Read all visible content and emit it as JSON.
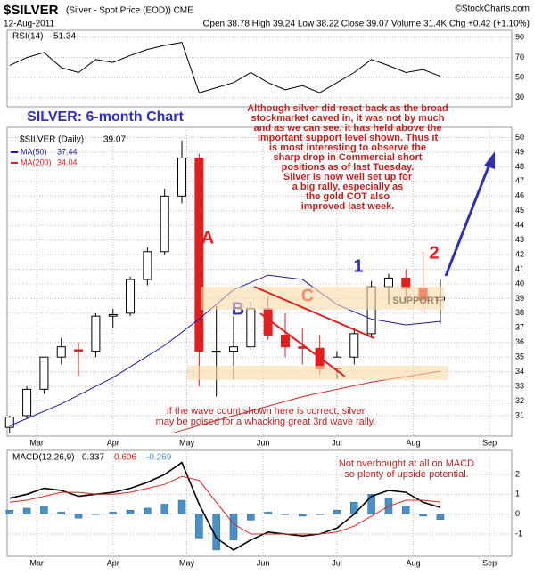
{
  "header": {
    "title": "$SILVER",
    "subtitle": "(Silver - Spot Price (EOD)) CME",
    "date": "12-Aug-2011",
    "quote": "Open 38.78  High 39.24  Low 38.22  Close 39.07  Volume 31.4K  Chg +0.42 (+1.10%)",
    "credit": "©StockCharts.com"
  },
  "chart_data": [
    {
      "type": "line",
      "series": [
        {
          "name": "RSI(14)",
          "color": "#000000",
          "x": [
            49,
            56,
            63,
            70,
            77,
            84,
            91,
            98,
            105,
            112,
            119,
            126,
            133,
            140,
            147,
            154,
            161,
            168,
            175,
            182,
            189,
            196,
            203,
            210,
            217,
            224
          ],
          "values": [
            62,
            70,
            75,
            60,
            55,
            68,
            65,
            72,
            78,
            82,
            85,
            35,
            40,
            45,
            55,
            45,
            38,
            42,
            35,
            45,
            55,
            68,
            62,
            55,
            58,
            51.34
          ]
        }
      ],
      "xlim": [
        48,
        253
      ],
      "ylim": [
        21,
        97
      ],
      "yticks": [
        30,
        50,
        70,
        90
      ],
      "grid": true
    },
    {
      "type": "candlestick",
      "title": "SILVER: 6-month Chart",
      "name": "$SILVER (Daily)",
      "x": [
        49,
        56,
        63,
        70,
        77,
        84,
        91,
        98,
        105,
        112,
        119,
        126,
        133,
        140,
        147,
        154,
        161,
        168,
        175,
        182,
        189,
        196,
        203,
        210,
        217,
        224
      ],
      "open": [
        30.2,
        31.0,
        32.8,
        35.0,
        35.5,
        35.4,
        37.8,
        38.0,
        40.3,
        42.2,
        46.0,
        48.6,
        35.4,
        35.4,
        35.7,
        38.3,
        36.5,
        35.7,
        35.6,
        34.2,
        35.0,
        36.6,
        39.8,
        40.4,
        39.7,
        38.9
      ],
      "high": [
        31.0,
        33.0,
        35.0,
        36.3,
        36.0,
        38.0,
        38.3,
        40.5,
        42.5,
        46.5,
        49.8,
        48.9,
        38.5,
        37.8,
        38.8,
        39.2,
        38.0,
        37.0,
        36.5,
        35.4,
        37.0,
        40.2,
        40.7,
        41.0,
        42.2,
        40.3
      ],
      "low": [
        29.8,
        30.8,
        32.5,
        34.5,
        33.7,
        35.0,
        37.0,
        37.8,
        39.9,
        42.0,
        45.5,
        33.0,
        32.3,
        33.5,
        35.5,
        36.2,
        35.0,
        34.5,
        33.8,
        33.5,
        34.5,
        36.3,
        38.6,
        38.7,
        38.0,
        37.3
      ],
      "close": [
        30.9,
        32.8,
        35.0,
        35.7,
        35.4,
        37.8,
        37.9,
        40.3,
        42.2,
        46.0,
        48.6,
        35.4,
        35.4,
        35.7,
        38.3,
        36.5,
        35.7,
        35.6,
        34.2,
        35.0,
        36.6,
        39.8,
        40.4,
        39.7,
        38.9,
        39.07
      ],
      "up_color": "#ffffff",
      "down_color": "#e02020",
      "series": [
        {
          "name": "MA(50)",
          "color": "#1a1aa0",
          "x": [
            49,
            70,
            91,
            112,
            126,
            140,
            154,
            168,
            182,
            196,
            210,
            224
          ],
          "values": [
            30.3,
            31.8,
            33.6,
            35.8,
            37.6,
            39.6,
            40.6,
            40.3,
            38.6,
            37.6,
            37.2,
            37.44
          ]
        },
        {
          "name": "MA(200)",
          "color": "#e02020",
          "x": [
            115,
            140,
            168,
            196,
            224
          ],
          "values": [
            29.8,
            31.0,
            32.3,
            33.3,
            34.04
          ]
        }
      ],
      "xlim": [
        48,
        253
      ],
      "ylim": [
        29.6,
        50.7
      ],
      "yticks": [
        31,
        32,
        33,
        34,
        35,
        36,
        37,
        38,
        39,
        40,
        41,
        42,
        43,
        44,
        45,
        46,
        47,
        48,
        49,
        50
      ],
      "xticks": [
        {
          "value": 60,
          "label": "Mar"
        },
        {
          "value": 91,
          "label": "Apr"
        },
        {
          "value": 121,
          "label": "May"
        },
        {
          "value": 152,
          "label": "Jun"
        },
        {
          "value": 182,
          "label": "Jul"
        },
        {
          "value": 213,
          "label": "Aug"
        },
        {
          "value": 244,
          "label": "Sep"
        }
      ],
      "grid": true,
      "note": [
        "Although silver did react back as the broad",
        "stockmarket caved in, it was not by much",
        "and as we can see, it has held above the",
        "important support level shown. Thus it",
        "is most interesting to observe the",
        "sharp drop in Commercial short",
        "positions as of last Tuesday.",
        "Silver is now well set up for",
        "a big rally, especially as",
        "the gold COT also",
        "improved last week."
      ],
      "waves": [
        "A",
        "B",
        "C",
        "1",
        "2"
      ],
      "support": "SUPPORT",
      "forecast": [
        "If the wave count shown here is correct, silver",
        "may be poised for a whacking great 3rd wave rally."
      ]
    },
    {
      "type": "macd",
      "series": [
        {
          "name": "MACD(12,26,9)",
          "color": "#000000",
          "values": [
            0.8,
            1.0,
            1.3,
            1.2,
            0.9,
            1.0,
            1.1,
            1.3,
            1.6,
            2.0,
            2.6,
            0.5,
            -1.2,
            -1.8,
            -1.3,
            -0.9,
            -1.0,
            -1.1,
            -1.0,
            -0.7,
            0.0,
            0.9,
            1.2,
            1.1,
            0.6,
            0.337
          ]
        },
        {
          "color": "#e02020",
          "values": [
            0.6,
            0.7,
            0.9,
            1.1,
            1.1,
            1.0,
            1.0,
            1.1,
            1.3,
            1.5,
            1.9,
            1.7,
            0.6,
            -0.5,
            -1.0,
            -1.0,
            -1.0,
            -1.0,
            -1.0,
            -0.9,
            -0.6,
            -0.1,
            0.4,
            0.7,
            0.7,
            0.606
          ]
        },
        {
          "color": "#4a90c8",
          "values": [
            0.2,
            0.3,
            0.4,
            0.1,
            -0.2,
            0,
            0.1,
            0.2,
            0.3,
            0.5,
            0.7,
            -1.2,
            -1.8,
            -1.3,
            -0.3,
            0.1,
            0,
            -0.1,
            0,
            0.2,
            0.6,
            1.0,
            0.8,
            0.4,
            -0.1,
            -0.269
          ]
        }
      ],
      "x": [
        49,
        56,
        63,
        70,
        77,
        84,
        91,
        98,
        105,
        112,
        119,
        126,
        133,
        140,
        147,
        154,
        161,
        168,
        175,
        182,
        189,
        196,
        203,
        210,
        217,
        224
      ],
      "xlim": [
        48,
        253
      ],
      "ylim": [
        -2.12,
        3.21
      ],
      "yticks": [
        -1,
        0,
        1,
        2
      ],
      "xticks": [
        {
          "value": 60,
          "label": "Mar"
        },
        {
          "value": 91,
          "label": "Apr"
        },
        {
          "value": 121,
          "label": "May"
        },
        {
          "value": 152,
          "label": "Jun"
        },
        {
          "value": 182,
          "label": "Jul"
        },
        {
          "value": 213,
          "label": "Aug"
        },
        {
          "value": 244,
          "label": "Sep"
        }
      ],
      "grid": true,
      "note": [
        "Not overbought at all on MACD",
        "so plenty of upside potential."
      ]
    }
  ]
}
